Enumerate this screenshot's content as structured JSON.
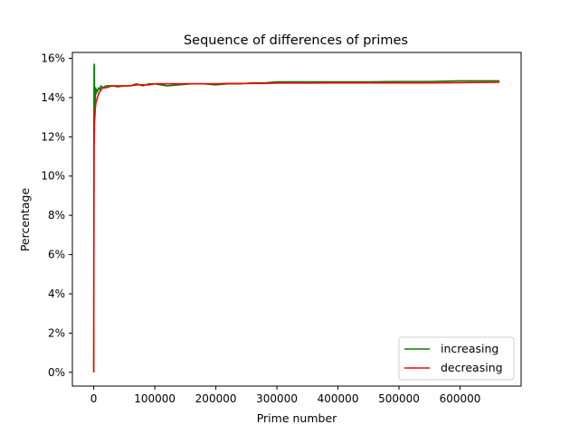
{
  "chart_data": {
    "type": "line",
    "title": "Sequence of differences of primes",
    "xlabel": "Prime number",
    "ylabel": "Percentage",
    "xlim": [
      -35000,
      700000
    ],
    "ylim": [
      -0.7,
      16.3
    ],
    "x_ticks": [
      0,
      100000,
      200000,
      300000,
      400000,
      500000,
      600000
    ],
    "x_tick_labels": [
      "0",
      "100000",
      "200000",
      "300000",
      "400000",
      "500000",
      "600000"
    ],
    "y_ticks": [
      0,
      2,
      4,
      6,
      8,
      10,
      12,
      14,
      16
    ],
    "y_tick_labels": [
      "0%",
      "2%",
      "4%",
      "6%",
      "8%",
      "10%",
      "12%",
      "14%",
      "16%"
    ],
    "grid": false,
    "legend_position": "bottom-right",
    "series": [
      {
        "name": "increasing",
        "color": "#008000",
        "x": [
          0,
          300,
          600,
          900,
          1200,
          1500,
          2000,
          2500,
          3000,
          4000,
          5000,
          6000,
          8000,
          10000,
          12000,
          15000,
          20000,
          30000,
          40000,
          50000,
          60000,
          70000,
          80000,
          90000,
          100000,
          120000,
          140000,
          160000,
          180000,
          200000,
          220000,
          240000,
          260000,
          280000,
          300000,
          350000,
          400000,
          450000,
          500000,
          550000,
          600000,
          664579
        ],
        "y": [
          0.0,
          12.8,
          15.6,
          15.7,
          14.2,
          13.3,
          14.4,
          13.9,
          14.5,
          14.2,
          14.4,
          14.3,
          14.5,
          14.4,
          14.6,
          14.5,
          14.6,
          14.6,
          14.55,
          14.6,
          14.6,
          14.7,
          14.6,
          14.7,
          14.7,
          14.6,
          14.65,
          14.7,
          14.7,
          14.65,
          14.7,
          14.7,
          14.75,
          14.75,
          14.8,
          14.8,
          14.8,
          14.8,
          14.82,
          14.82,
          14.85,
          14.85
        ]
      },
      {
        "name": "decreasing",
        "color": "#ff0000",
        "x": [
          0,
          300,
          600,
          900,
          1200,
          1500,
          2000,
          2500,
          3000,
          4000,
          5000,
          6000,
          8000,
          10000,
          12000,
          15000,
          20000,
          30000,
          40000,
          50000,
          60000,
          70000,
          80000,
          90000,
          100000,
          120000,
          140000,
          160000,
          180000,
          200000,
          220000,
          240000,
          260000,
          280000,
          300000,
          350000,
          400000,
          450000,
          500000,
          550000,
          600000,
          664579
        ],
        "y": [
          0.0,
          7.6,
          11.5,
          12.2,
          12.8,
          12.9,
          13.1,
          13.4,
          13.6,
          13.8,
          13.9,
          14.0,
          14.2,
          14.3,
          14.4,
          14.5,
          14.5,
          14.6,
          14.6,
          14.6,
          14.6,
          14.65,
          14.65,
          14.65,
          14.7,
          14.7,
          14.7,
          14.7,
          14.7,
          14.7,
          14.72,
          14.72,
          14.72,
          14.72,
          14.74,
          14.74,
          14.75,
          14.75,
          14.75,
          14.75,
          14.76,
          14.78
        ]
      }
    ]
  }
}
